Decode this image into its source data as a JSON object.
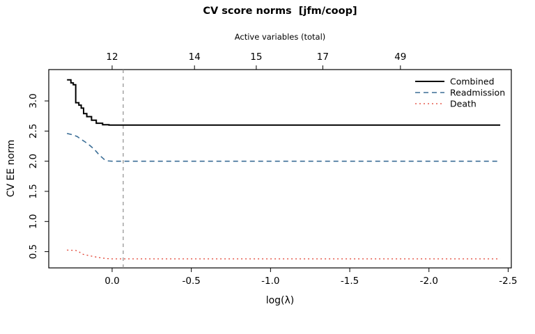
{
  "chart_data": {
    "type": "line",
    "title": "CV score norms  [jfm/coop]",
    "top_axis": {
      "label": "Active variables (total)",
      "ticks": [
        {
          "x": 0.0,
          "label": "12"
        },
        {
          "x": -0.52,
          "label": "14"
        },
        {
          "x": -0.91,
          "label": "15"
        },
        {
          "x": -1.33,
          "label": "17"
        },
        {
          "x": -1.82,
          "label": "49"
        }
      ]
    },
    "x_axis": {
      "label": "log(λ)",
      "range": [
        0.4,
        -2.52
      ],
      "ticks": [
        {
          "x": 0.0,
          "label": "0.0"
        },
        {
          "x": -0.5,
          "label": "-0.5"
        },
        {
          "x": -1.0,
          "label": "-1.0"
        },
        {
          "x": -1.5,
          "label": "-1.5"
        },
        {
          "x": -2.0,
          "label": "-2.0"
        },
        {
          "x": -2.5,
          "label": "-2.5"
        }
      ]
    },
    "y_axis": {
      "label": "CV EE norm",
      "range": [
        0.23,
        3.52
      ],
      "ticks": [
        {
          "y": 0.5,
          "label": "0.5"
        },
        {
          "y": 1.0,
          "label": "1.0"
        },
        {
          "y": 1.5,
          "label": "1.5"
        },
        {
          "y": 2.0,
          "label": "2.0"
        },
        {
          "y": 2.5,
          "label": "2.5"
        },
        {
          "y": 3.0,
          "label": "3.0"
        }
      ]
    },
    "vline": {
      "x": -0.07,
      "color": "#8c8c8c",
      "style": "dashed"
    },
    "legend": {
      "position": "top-right"
    },
    "series": [
      {
        "name": "Combined",
        "color": "#000000",
        "linetype": "solid",
        "width": 2,
        "points": [
          [
            0.285,
            3.35
          ],
          [
            0.26,
            3.35
          ],
          [
            0.26,
            3.3
          ],
          [
            0.245,
            3.3
          ],
          [
            0.245,
            3.27
          ],
          [
            0.23,
            3.27
          ],
          [
            0.23,
            2.97
          ],
          [
            0.21,
            2.97
          ],
          [
            0.21,
            2.93
          ],
          [
            0.195,
            2.93
          ],
          [
            0.195,
            2.88
          ],
          [
            0.18,
            2.88
          ],
          [
            0.18,
            2.79
          ],
          [
            0.16,
            2.79
          ],
          [
            0.16,
            2.74
          ],
          [
            0.13,
            2.74
          ],
          [
            0.13,
            2.68
          ],
          [
            0.1,
            2.68
          ],
          [
            0.1,
            2.63
          ],
          [
            0.06,
            2.63
          ],
          [
            0.06,
            2.605
          ],
          [
            0.02,
            2.605
          ],
          [
            0.02,
            2.6
          ],
          [
            -2.45,
            2.6
          ]
        ]
      },
      {
        "name": "Readmission",
        "color": "#3b6e96",
        "linetype": "dashed",
        "width": 1.6,
        "points": [
          [
            0.285,
            2.46
          ],
          [
            0.25,
            2.44
          ],
          [
            0.22,
            2.41
          ],
          [
            0.2,
            2.37
          ],
          [
            0.17,
            2.32
          ],
          [
            0.14,
            2.26
          ],
          [
            0.11,
            2.19
          ],
          [
            0.08,
            2.1
          ],
          [
            0.05,
            2.03
          ],
          [
            0.03,
            2.005
          ],
          [
            0.0,
            2.0
          ],
          [
            -2.45,
            2.0
          ]
        ]
      },
      {
        "name": "Death",
        "color": "#e03b2a",
        "linetype": "dotted",
        "width": 1.3,
        "points": [
          [
            0.285,
            0.525
          ],
          [
            0.23,
            0.52
          ],
          [
            0.21,
            0.5
          ],
          [
            0.19,
            0.46
          ],
          [
            0.15,
            0.435
          ],
          [
            0.11,
            0.415
          ],
          [
            0.07,
            0.395
          ],
          [
            0.03,
            0.385
          ],
          [
            0.0,
            0.38
          ],
          [
            -2.45,
            0.38
          ]
        ]
      }
    ]
  }
}
